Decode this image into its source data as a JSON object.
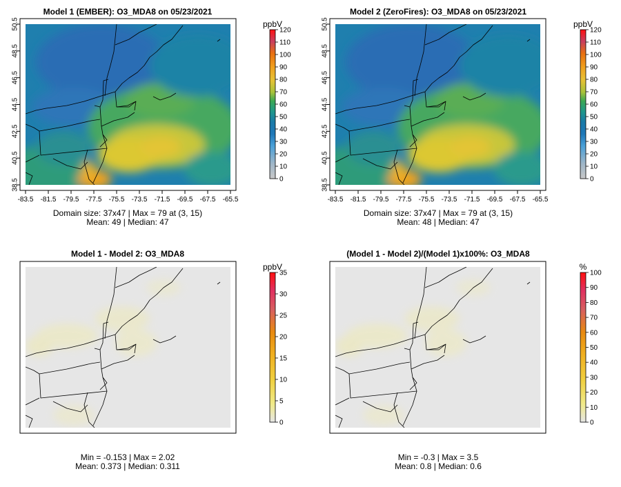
{
  "chart_data": [
    {
      "type": "heatmap",
      "id": "p1",
      "title": "Model 1 (EMBER): O3_MDA8 on 05/23/2021",
      "units": "ppbV",
      "colorbar_ticks": [
        0,
        10,
        20,
        30,
        40,
        50,
        60,
        70,
        80,
        90,
        100,
        110,
        120
      ],
      "colorbar_range": [
        0,
        120
      ],
      "palette": [
        "#c8c8c8",
        "#4aa0d8",
        "#1e78b8",
        "#1a7aa8",
        "#20988c",
        "#3aa855",
        "#a8c23a",
        "#e6c236",
        "#f0a01e",
        "#e87010",
        "#e04010",
        "#ff2000"
      ],
      "xticks": [
        "-83.5",
        "-81.5",
        "-79.5",
        "-77.5",
        "-75.5",
        "-73.5",
        "-71.5",
        "-69.5",
        "-67.5",
        "-65.5"
      ],
      "yticks": [
        "38.5",
        "40.5",
        "42.5",
        "44.5",
        "46.5",
        "48.5",
        "50.5"
      ],
      "xlim": [
        -83.5,
        -65.5
      ],
      "ylim": [
        38.5,
        50.5
      ],
      "stats_line1": "Domain size: 37x47 | Max = 79 at (3, 15)",
      "stats_line2": "Mean: 49 |  Median: 47",
      "summary": {
        "max": 79,
        "mean": 49,
        "median": 47,
        "grid": "37x47"
      }
    },
    {
      "type": "heatmap",
      "id": "p2",
      "title": "Model 2 (ZeroFires): O3_MDA8 on 05/23/2021",
      "units": "ppbV",
      "colorbar_ticks": [
        0,
        10,
        20,
        30,
        40,
        50,
        60,
        70,
        80,
        90,
        100,
        110,
        120
      ],
      "colorbar_range": [
        0,
        120
      ],
      "palette": [
        "#c8c8c8",
        "#4aa0d8",
        "#1e78b8",
        "#1a7aa8",
        "#20988c",
        "#3aa855",
        "#a8c23a",
        "#e6c236",
        "#f0a01e",
        "#e87010",
        "#e04010",
        "#ff2000"
      ],
      "xticks": [
        "-83.5",
        "-81.5",
        "-79.5",
        "-77.5",
        "-75.5",
        "-73.5",
        "-71.5",
        "-69.5",
        "-67.5",
        "-65.5"
      ],
      "yticks": [
        "38.5",
        "40.5",
        "42.5",
        "44.5",
        "46.5",
        "48.5",
        "50.5"
      ],
      "xlim": [
        -83.5,
        -65.5
      ],
      "ylim": [
        38.5,
        50.5
      ],
      "stats_line1": "Domain size: 37x47 | Max = 79 at (3, 15)",
      "stats_line2": "Mean: 48 |  Median: 47",
      "summary": {
        "max": 79,
        "mean": 48,
        "median": 47,
        "grid": "37x47"
      }
    },
    {
      "type": "heatmap",
      "id": "p3",
      "title": "Model 1 - Model 2: O3_MDA8",
      "units": "ppbV",
      "colorbar_ticks": [
        0,
        5,
        10,
        15,
        20,
        25,
        30,
        35
      ],
      "colorbar_range": [
        0,
        35
      ],
      "palette": [
        "#e6e6e6",
        "#f0ea8a",
        "#f0d040",
        "#f0b020",
        "#e89010",
        "#e06040",
        "#e03060",
        "#ff1010"
      ],
      "stats_line1": "Min = -0.153 | Max = 2.02",
      "stats_line2": "Mean: 0.373 |  Median: 0.311",
      "summary": {
        "min": -0.153,
        "max": 2.02,
        "mean": 0.373,
        "median": 0.311
      }
    },
    {
      "type": "heatmap",
      "id": "p4",
      "title": "(Model 1 - Model 2)/(Model 1)x100%: O3_MDA8",
      "units": "%",
      "colorbar_ticks": [
        0,
        10,
        20,
        30,
        40,
        50,
        60,
        70,
        80,
        90,
        100
      ],
      "colorbar_range": [
        0,
        100
      ],
      "palette": [
        "#e6e6e6",
        "#f0ea8a",
        "#f0d040",
        "#f0b020",
        "#e89010",
        "#e06040",
        "#e03060",
        "#ff1010"
      ],
      "stats_line1": "Min = -0.3 | Max = 3.5",
      "stats_line2": "Mean: 0.8 |  Median: 0.6",
      "summary": {
        "min": -0.3,
        "max": 3.5,
        "mean": 0.8,
        "median": 0.6
      }
    }
  ]
}
